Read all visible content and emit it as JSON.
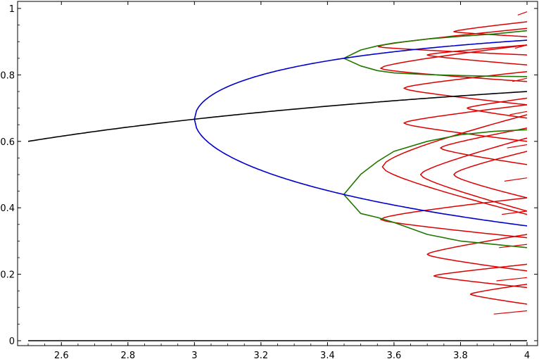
{
  "chart_data": {
    "type": "line",
    "title": "",
    "xlabel": "",
    "ylabel": "",
    "xlim": [
      2.5,
      4.0
    ],
    "ylim": [
      0.0,
      1.0
    ],
    "grid": false,
    "legend": "none",
    "x_ticks": [
      "2.6",
      "2.8",
      "3",
      "3.2",
      "3.4",
      "3.6",
      "3.8",
      "4"
    ],
    "y_ticks": [
      "0",
      "0.2",
      "0.4",
      "0.6",
      "0.8",
      "1"
    ],
    "series": [
      {
        "color": "#000000",
        "x": [
          2.5,
          3.0,
          3.5,
          4.0
        ],
        "y": [
          0.6,
          0.6667,
          0.7143,
          0.75
        ]
      },
      {
        "color": "#000000",
        "x": [
          2.5,
          4.0
        ],
        "y": [
          0.0,
          0.0
        ]
      },
      {
        "color": "#0000cc",
        "x": [
          3.0,
          3.1,
          3.2,
          3.3,
          3.4,
          3.449,
          3.6,
          3.8,
          4.0
        ],
        "y_upper": [
          0.6667,
          0.7646,
          0.7995,
          0.8236,
          0.8422,
          0.8499,
          0.8728,
          0.8954,
          0.9045
        ],
        "y_lower": [
          0.6667,
          0.558,
          0.513,
          0.4794,
          0.452,
          0.44,
          0.4004,
          0.378,
          0.3455
        ]
      },
      {
        "color": "#227700",
        "x": [
          3.449,
          3.5,
          3.55,
          3.6,
          3.7,
          3.8,
          3.9,
          4.0
        ],
        "y_outer_upper": [
          0.8499,
          0.875,
          0.8872,
          0.896,
          0.908,
          0.916,
          0.923,
          0.933
        ],
        "y_inner_upper": [
          0.8499,
          0.8269,
          0.813,
          0.806,
          0.801,
          0.798,
          0.796,
          0.795
        ],
        "y_inner_lower": [
          0.44,
          0.3828,
          0.371,
          0.356,
          0.32,
          0.3,
          0.29,
          0.28
        ],
        "y_outer_lower": [
          0.44,
          0.5009,
          0.539,
          0.57,
          0.6,
          0.62,
          0.63,
          0.635
        ]
      },
      {
        "color": "#dd0000",
        "x_range": [
          3.55,
          4.0
        ],
        "y_range": [
          0.02,
          0.99
        ]
      }
    ]
  }
}
